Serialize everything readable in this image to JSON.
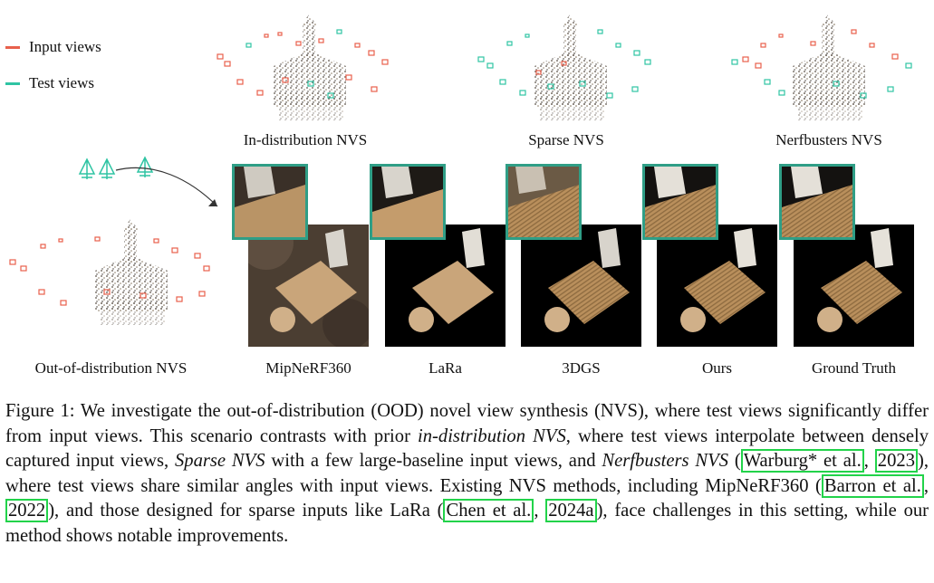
{
  "legend": {
    "input_label": "Input views",
    "test_label": "Test views",
    "input_color": "#e8604c",
    "test_color": "#2fc4a3"
  },
  "scene_labels": {
    "in_distribution": "In-distribution NVS",
    "sparse": "Sparse NVS",
    "nerfbusters": "Nerfbusters NVS",
    "ood": "Out-of-distribution NVS"
  },
  "methods": [
    "MipNeRF360",
    "LaRa",
    "3DGS",
    "Ours",
    "Ground Truth"
  ],
  "caption": {
    "s1": "Figure 1: We investigate the out-of-distribution (OOD) novel view synthesis (NVS), where test views significantly differ from input views. This scenario contrasts with prior ",
    "s1_em": "in-distribution NVS",
    "s2": ", where test views interpolate between densely captured input views, ",
    "s2_em": "Sparse NVS",
    "s3": " with a few large-baseline input views, and ",
    "s3_em": "Nerfbusters NVS",
    "s4": " (",
    "cite1a": "Warburg* et al.",
    "s5": ", ",
    "cite1b": "2023",
    "s6": "), where test views share similar angles with input views. Existing NVS methods, including MipNeRF360 (",
    "cite2a": "Barron et al.",
    "s7": ", ",
    "cite2b": "2022",
    "s8": "), and those designed for sparse inputs like LaRa (",
    "cite3a": "Chen et al.",
    "s9": ", ",
    "cite3b": "2024a",
    "s10": "), face challenges in this setting, while our method shows notable improvements."
  }
}
